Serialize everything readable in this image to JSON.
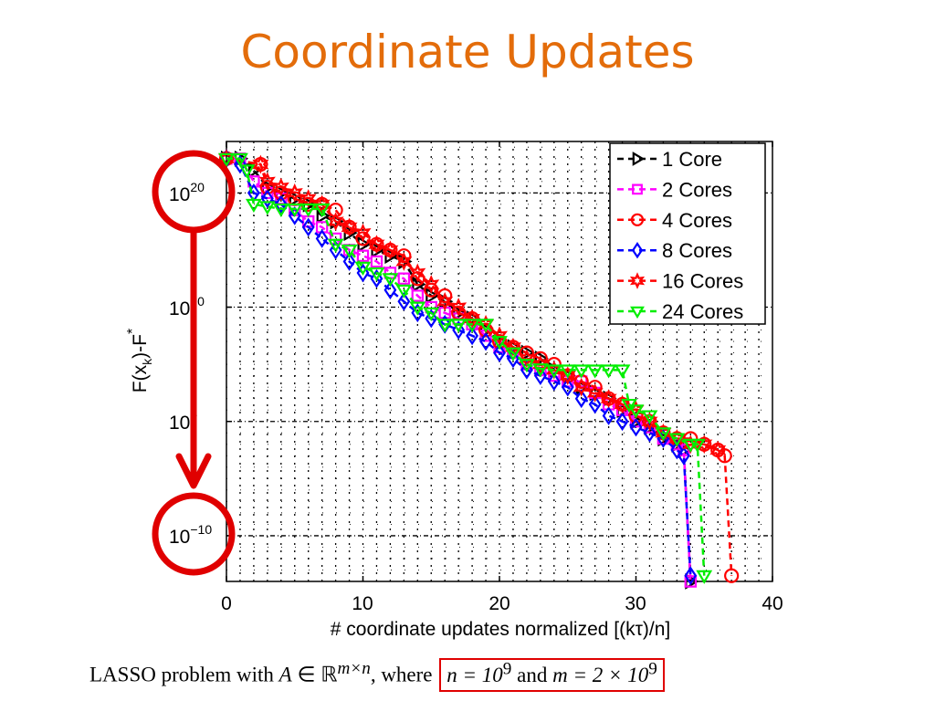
{
  "slide": {
    "title": "Coordinate Updates",
    "caption_pre": "LASSO problem with ",
    "caption_A": "A",
    "caption_in": " ∈ ℝ",
    "caption_sup": "m×n",
    "caption_where": ", where ",
    "caption_boxed_n": "n = 10",
    "caption_boxed_n_exp": "9",
    "caption_boxed_and": " and ",
    "caption_boxed_m": "m = 2 × 10",
    "caption_boxed_m_exp": "9",
    "annotation_color": "#e00000",
    "title_color": "#e36c0a"
  },
  "chart_data": {
    "type": "line",
    "yscale": "log",
    "xlabel": "# coordinate updates normalized [(kτ)/n]",
    "ylabel": "F(x_k)-F^*",
    "ylabel_main": "F(x",
    "ylabel_sub": "k",
    "ylabel_mid": ")-F",
    "ylabel_sup": "*",
    "xlim": [
      0,
      40
    ],
    "ylim_exponent": [
      -14,
      24.5
    ],
    "xticks": [
      "0",
      "10",
      "20",
      "30",
      "40"
    ],
    "yticks": [
      {
        "base": "10",
        "exp": "20"
      },
      {
        "base": "10",
        "exp": "10"
      },
      {
        "base": "10",
        "exp": "0"
      },
      {
        "base": "10",
        "exp": "−10"
      }
    ],
    "grid": true,
    "legend_position": "top-right",
    "series": [
      {
        "name": "1 Core",
        "color": "#000000",
        "marker": "triangle-right",
        "x": [
          0,
          1,
          2,
          3,
          4,
          5,
          6,
          7,
          8,
          9,
          10,
          11,
          12,
          13,
          14,
          15,
          16,
          17,
          18,
          19,
          20,
          21,
          22,
          23,
          24,
          25,
          26,
          27,
          28,
          29,
          30,
          31,
          32,
          33,
          33.5,
          34
        ],
        "y_exp": [
          23,
          23,
          22,
          20.5,
          20,
          19.5,
          19,
          18,
          17.5,
          16.5,
          15.5,
          15,
          14.5,
          14,
          12,
          11,
          10.5,
          9.5,
          9,
          8,
          7,
          6.5,
          6,
          5.5,
          4.5,
          4,
          3,
          2.5,
          2,
          1,
          0,
          -0.5,
          -1.5,
          -2,
          -2.5,
          -14
        ]
      },
      {
        "name": "2 Cores",
        "color": "#ff00ff",
        "marker": "square",
        "x": [
          0,
          1,
          2,
          3,
          4,
          5,
          6,
          7,
          8,
          9,
          10,
          11,
          12,
          13,
          14,
          15,
          16,
          17,
          18,
          19,
          20,
          21,
          22,
          23,
          24,
          25,
          26,
          27,
          28,
          29,
          30,
          31,
          32,
          33,
          33.5,
          34
        ],
        "y_exp": [
          23,
          23,
          21,
          20,
          19.5,
          18.5,
          17.5,
          17,
          16,
          15,
          14.5,
          14,
          13,
          12.5,
          11,
          10,
          9.5,
          9,
          8.5,
          7.5,
          6.5,
          6,
          5,
          4.5,
          4,
          3.5,
          3.5,
          2.5,
          1.5,
          1,
          0,
          -0.5,
          -1.5,
          -2,
          -2.5,
          -14
        ]
      },
      {
        "name": "4 Cores",
        "color": "#ff0000",
        "marker": "circle",
        "x": [
          0,
          2.5,
          3,
          4,
          5,
          6,
          7,
          8,
          9,
          10,
          11,
          12,
          13,
          14,
          15,
          16,
          17,
          18,
          19,
          20,
          21,
          22,
          23,
          24,
          25,
          26,
          27,
          28,
          29,
          30,
          31,
          32,
          33,
          34,
          35,
          36,
          36.5,
          37
        ],
        "y_exp": [
          23,
          22.5,
          20.5,
          20,
          19.5,
          19,
          19,
          18.5,
          17,
          16,
          15.5,
          15,
          14.5,
          12.5,
          11.5,
          11,
          9.5,
          9,
          8,
          7,
          6.5,
          6,
          5.5,
          5,
          4,
          3.5,
          3,
          2,
          1.5,
          0.5,
          0,
          -1,
          -1.5,
          -1.5,
          -2,
          -2.5,
          -3,
          -13.5
        ]
      },
      {
        "name": "8 Cores",
        "color": "#0000ff",
        "marker": "diamond",
        "x": [
          0,
          1,
          2,
          3,
          4,
          5,
          6,
          7,
          8,
          9,
          10,
          11,
          12,
          13,
          14,
          15,
          16,
          17,
          18,
          19,
          20,
          21,
          22,
          23,
          24,
          25,
          26,
          27,
          28,
          29,
          30,
          31,
          32,
          33,
          33.5,
          34
        ],
        "y_exp": [
          23,
          22.5,
          20,
          19.5,
          19,
          18,
          17,
          16,
          15,
          14,
          13,
          12.5,
          11.5,
          10.5,
          9.5,
          9,
          8.5,
          8,
          7.5,
          7,
          6,
          5.5,
          4.5,
          4,
          3.5,
          3,
          2,
          1.5,
          0.5,
          0,
          -0.5,
          -1,
          -1.5,
          -2.5,
          -3,
          -13.5
        ]
      },
      {
        "name": "16 Cores",
        "color": "#ff0000",
        "marker": "hexagram",
        "x": [
          0,
          2.5,
          3,
          4,
          5,
          6,
          7,
          8,
          9,
          10,
          11,
          12,
          13,
          14,
          15,
          16,
          17,
          18,
          19,
          20,
          21,
          22,
          23,
          24,
          25,
          26,
          27,
          28,
          29,
          30,
          31,
          32,
          33,
          34,
          35,
          36
        ],
        "y_exp": [
          23,
          22.5,
          21,
          20.5,
          20,
          19.5,
          19,
          17.5,
          17,
          16.5,
          15.5,
          15,
          14,
          13,
          12,
          10.5,
          10,
          9,
          8.5,
          7.5,
          6.5,
          5.5,
          5,
          4.5,
          4,
          3,
          2.5,
          2,
          1.5,
          1,
          0,
          -1,
          -1.5,
          -2,
          -2,
          -2.5
        ]
      },
      {
        "name": "24 Cores",
        "color": "#00ee00",
        "marker": "triangle-down",
        "x": [
          0,
          1,
          1.5,
          2,
          3,
          4,
          5,
          6,
          7,
          8,
          9,
          10,
          11,
          12,
          13,
          14,
          15,
          16,
          17,
          18,
          19,
          20,
          21,
          22,
          23,
          24,
          25,
          26,
          27,
          28,
          29,
          29.5,
          30,
          31,
          32,
          33,
          34,
          34.5,
          35
        ],
        "y_exp": [
          23,
          23,
          22,
          19,
          18.8,
          18.6,
          18.6,
          18.6,
          18.6,
          15.5,
          15,
          13.5,
          13,
          12.5,
          11.5,
          10,
          9.5,
          8.5,
          8.5,
          8.5,
          8.5,
          7,
          6,
          5,
          4.6,
          4.5,
          4.5,
          4.5,
          4.5,
          4.5,
          4.5,
          1.5,
          1,
          0.5,
          -1,
          -1.5,
          -2,
          -2,
          -13.5
        ]
      }
    ]
  }
}
